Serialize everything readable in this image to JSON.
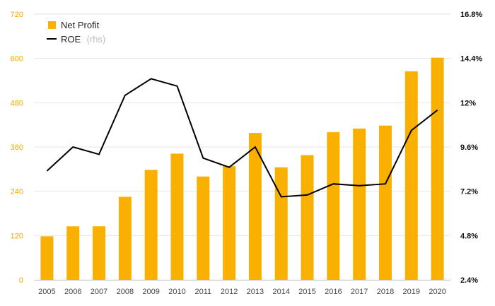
{
  "chart_data": {
    "type": "bar",
    "title": "",
    "xlabel": "",
    "ylabel": "",
    "categories": [
      "2005",
      "2006",
      "2007",
      "2008",
      "2009",
      "2010",
      "2011",
      "2012",
      "2013",
      "2014",
      "2015",
      "2016",
      "2017",
      "2018",
      "2019",
      "2020"
    ],
    "series": [
      {
        "name": "Net Profit",
        "type": "bar",
        "axis": "left",
        "color": "#f9b000",
        "values": [
          118,
          145,
          145,
          225,
          298,
          342,
          280,
          308,
          398,
          305,
          338,
          400,
          410,
          418,
          565,
          602
        ]
      },
      {
        "name": "ROE",
        "note": "(rhs)",
        "type": "line",
        "axis": "right",
        "color": "#000000",
        "values": [
          8.3,
          9.6,
          9.2,
          12.4,
          13.3,
          12.9,
          9.0,
          8.5,
          9.6,
          6.9,
          7.0,
          7.6,
          7.5,
          7.6,
          10.5,
          11.6
        ]
      }
    ],
    "ylim": [
      0,
      720
    ],
    "yticks": [
      "0",
      "120",
      "240",
      "360",
      "480",
      "600",
      "720"
    ],
    "y2lim": [
      2.4,
      16.8
    ],
    "y2ticks": [
      "2.4%",
      "4.8%",
      "7.2%",
      "9.6%",
      "12%",
      "14.4%",
      "16.8%"
    ],
    "grid": true,
    "legend_position": "top-left"
  }
}
